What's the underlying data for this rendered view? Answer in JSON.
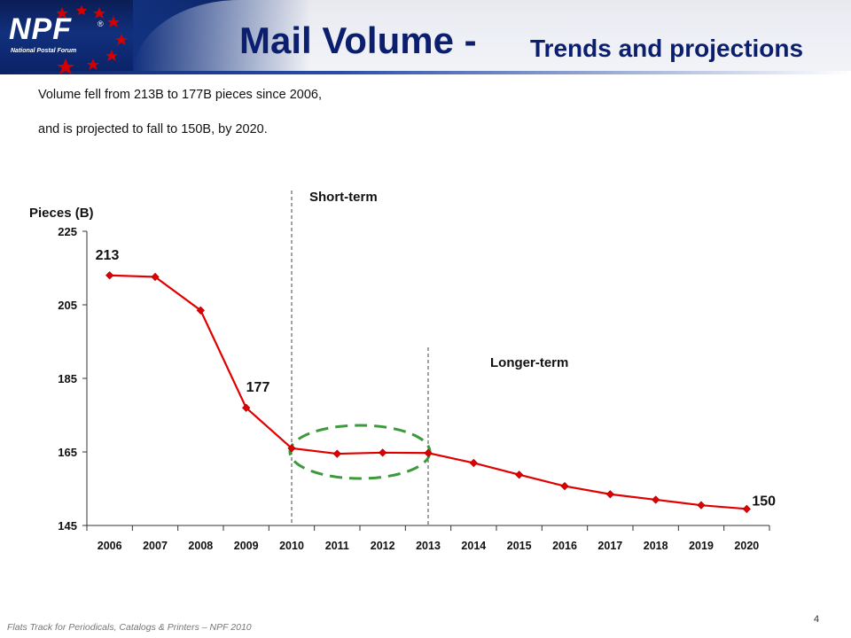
{
  "header": {
    "logo_text": "NPF",
    "logo_registered": "®",
    "logo_subtitle": "National Postal Forum",
    "title": "Mail Volume -",
    "subtitle": "Trends and projections"
  },
  "intro": {
    "line1": "Volume fell from 213B to 177B pieces since 2006,",
    "line2": "and is projected to fall to 150B, by 2020."
  },
  "footer": {
    "left": "Flats Track for Periodicals, Catalogs & Printers – NPF 2010",
    "page_number": "4"
  },
  "colors": {
    "banner": "#0b1f6e",
    "title": "#0b1f6e",
    "line": "#e00000",
    "marker": "#e00000",
    "highlight": "#3c9a3c",
    "logo_star": "#d40000"
  },
  "chart_data": {
    "type": "line",
    "ylabel": "Pieces (B)",
    "ylim": [
      145,
      225
    ],
    "yticks": [
      145,
      165,
      185,
      205,
      225
    ],
    "categories": [
      "2006",
      "2007",
      "2008",
      "2009",
      "2010",
      "2011",
      "2012",
      "2013",
      "2014",
      "2015",
      "2016",
      "2017",
      "2018",
      "2019",
      "2020"
    ],
    "series": [
      {
        "values": [
          213,
          212.6,
          203.5,
          177,
          166,
          164.5,
          164.8,
          164.7,
          162,
          158.8,
          155.7,
          153.5,
          152,
          150.5,
          149.5
        ]
      }
    ],
    "data_labels": [
      {
        "category": "2006",
        "text": "213"
      },
      {
        "category": "2009",
        "text": "177"
      },
      {
        "category": "2020",
        "text": "150"
      }
    ],
    "annotations": [
      {
        "text": "Short-term",
        "at_category": "2010"
      },
      {
        "text": "Longer-term",
        "at_category": "2013"
      }
    ],
    "highlight_ellipse": {
      "from": "2010",
      "to": "2013"
    },
    "grid": false
  }
}
